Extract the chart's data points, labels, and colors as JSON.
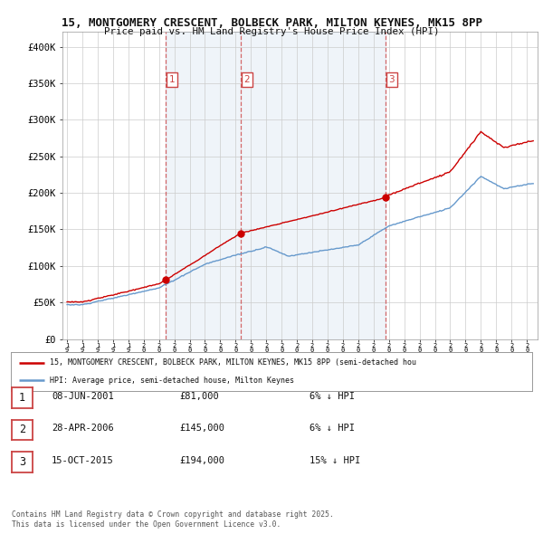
{
  "title": "15, MONTGOMERY CRESCENT, BOLBECK PARK, MILTON KEYNES, MK15 8PP",
  "subtitle": "Price paid vs. HM Land Registry's House Price Index (HPI)",
  "background_color": "#ffffff",
  "plot_bg_color": "#ffffff",
  "shading_color": "#ddeeff",
  "grid_color": "#cccccc",
  "hpi_color": "#6699cc",
  "price_color": "#cc0000",
  "dashed_color": "#cc4444",
  "ylim": [
    0,
    420000
  ],
  "yticks": [
    0,
    50000,
    100000,
    150000,
    200000,
    250000,
    300000,
    350000,
    400000
  ],
  "ytick_labels": [
    "£0",
    "£50K",
    "£100K",
    "£150K",
    "£200K",
    "£250K",
    "£300K",
    "£350K",
    "£400K"
  ],
  "transactions": [
    {
      "date_num": 2001.44,
      "price": 81000,
      "label": "1"
    },
    {
      "date_num": 2006.33,
      "price": 145000,
      "label": "2"
    },
    {
      "date_num": 2015.79,
      "price": 194000,
      "label": "3"
    }
  ],
  "legend_price_label": "15, MONTGOMERY CRESCENT, BOLBECK PARK, MILTON KEYNES, MK15 8PP (semi-detached hou",
  "legend_hpi_label": "HPI: Average price, semi-detached house, Milton Keynes",
  "footer1": "Contains HM Land Registry data © Crown copyright and database right 2025.",
  "footer2": "This data is licensed under the Open Government Licence v3.0.",
  "table_rows": [
    {
      "num": "1",
      "date": "08-JUN-2001",
      "price": "£81,000",
      "pct": "6% ↓ HPI"
    },
    {
      "num": "2",
      "date": "28-APR-2006",
      "price": "£145,000",
      "pct": "6% ↓ HPI"
    },
    {
      "num": "3",
      "date": "15-OCT-2015",
      "price": "£194,000",
      "pct": "15% ↓ HPI"
    }
  ]
}
